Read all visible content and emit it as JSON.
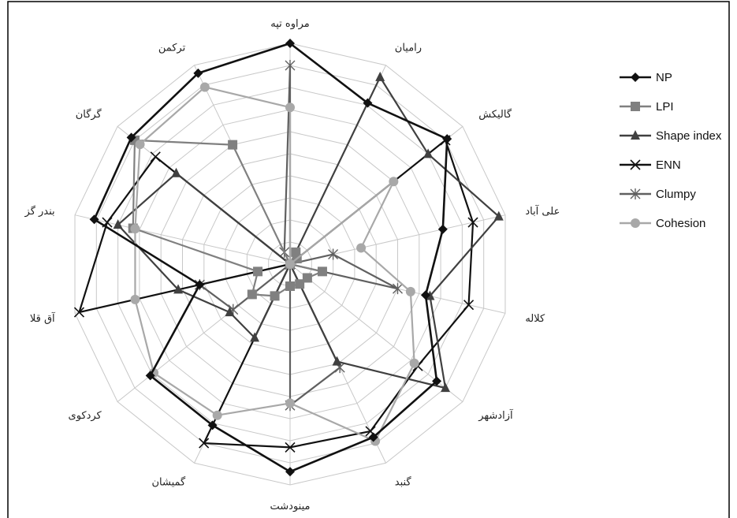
{
  "chart_data": {
    "type": "radar",
    "categories": [
      "مراوه تپه",
      "رامیان",
      "گالیکش",
      "علی آباد",
      "کلاله",
      "آزادشهر",
      "گنبد",
      "مینودشت",
      "گمیشان",
      "کردکوی",
      "آق قلا",
      "بندر گز",
      "گرگان",
      "ترکمن"
    ],
    "r_range": [
      0,
      10
    ],
    "grid_rings": 10,
    "grid": true,
    "legend_position": "right",
    "series": [
      {
        "name": "NP",
        "color": "#111111",
        "marker": "diamond",
        "values": [
          10.0,
          8.1,
          9.1,
          7.1,
          6.3,
          8.5,
          8.7,
          9.4,
          8.1,
          8.1,
          4.2,
          9.1,
          9.2,
          9.6
        ]
      },
      {
        "name": "LPI",
        "color": "#808080",
        "marker": "square",
        "values": [
          0.0,
          0.6,
          0.4,
          0.0,
          1.5,
          1.0,
          1.0,
          1.0,
          1.6,
          2.2,
          1.5,
          7.3,
          9.0,
          6.0
        ]
      },
      {
        "name": "Shape index",
        "color": "#404040",
        "marker": "triangle",
        "values": [
          0.0,
          9.4,
          8.0,
          9.7,
          6.5,
          9.0,
          4.9,
          0.0,
          3.7,
          3.5,
          5.2,
          8.0,
          6.6,
          0.0
        ]
      },
      {
        "name": "ENN",
        "color": "#111111",
        "marker": "x",
        "values": [
          0.0,
          0.0,
          9.0,
          8.5,
          8.3,
          7.4,
          8.4,
          8.3,
          9.0,
          0.0,
          9.8,
          8.5,
          7.8,
          0.0
        ]
      },
      {
        "name": "Clumpy",
        "color": "#606060",
        "marker": "star",
        "values": [
          9.0,
          0.0,
          0.0,
          2.0,
          5.0,
          0.0,
          5.2,
          6.4,
          0.0,
          3.3,
          4.2,
          0.0,
          0.0,
          0.6
        ]
      },
      {
        "name": "Cohesion",
        "color": "#a8a8a8",
        "marker": "circle",
        "values": [
          7.1,
          0.0,
          6.0,
          3.3,
          5.6,
          7.2,
          8.9,
          6.3,
          7.6,
          7.9,
          7.2,
          7.2,
          8.7,
          8.9
        ]
      }
    ]
  }
}
